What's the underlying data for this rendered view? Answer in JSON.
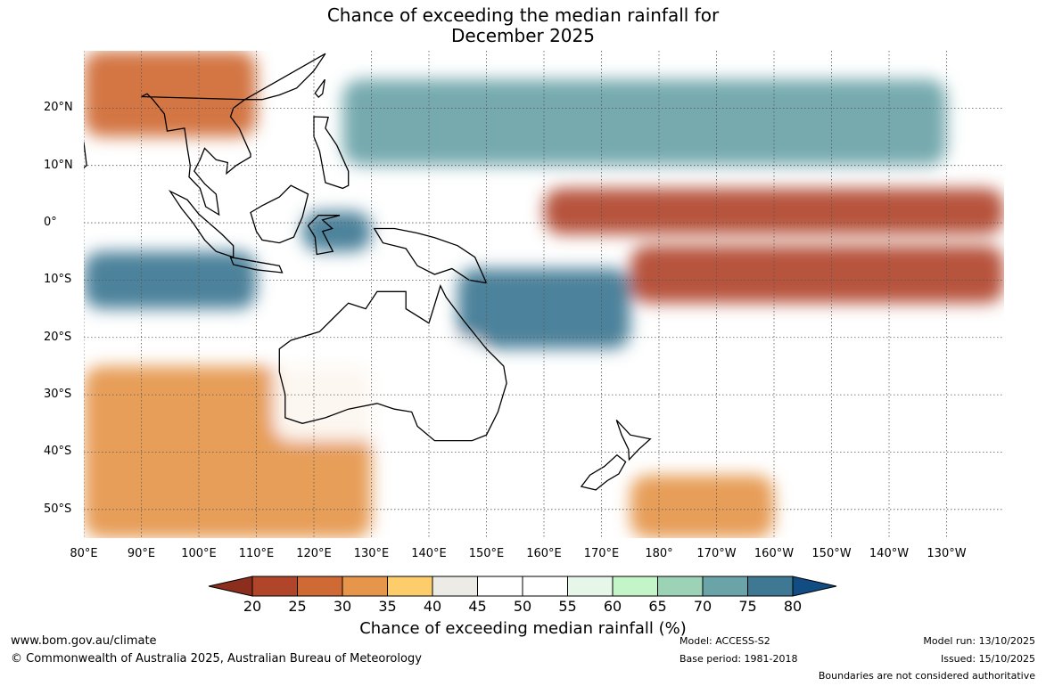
{
  "title": {
    "line1": "Chance of exceeding the median rainfall for",
    "line2": "December 2025"
  },
  "axes": {
    "y_labels": [
      "20°N",
      "10°N",
      "0°",
      "10°S",
      "20°S",
      "30°S",
      "40°S",
      "50°S"
    ],
    "x_labels": [
      "80°E",
      "90°E",
      "100°E",
      "110°E",
      "120°E",
      "130°E",
      "140°E",
      "150°E",
      "160°E",
      "170°E",
      "180°",
      "170°W",
      "160°W",
      "150°W",
      "140°W",
      "130°W"
    ]
  },
  "colorbar": {
    "label": "Chance of exceeding median rainfall (%)",
    "ticks": [
      "20",
      "25",
      "30",
      "35",
      "40",
      "45",
      "50",
      "55",
      "60",
      "65",
      "70",
      "75",
      "80"
    ],
    "colors": [
      "#8b2e1e",
      "#b1452a",
      "#cf6a35",
      "#e5964a",
      "#fdcd6b",
      "#ecebe6",
      "#ffffff",
      "#ffffff",
      "#e6f6e8",
      "#c4f5c8",
      "#9cd2b5",
      "#6aa3a8",
      "#3e7893",
      "#114c82"
    ]
  },
  "footer": {
    "website": "www.bom.gov.au/climate",
    "copyright": "© Commonwealth of Australia 2025, Australian Bureau of Meteorology",
    "model": "Model: ACCESS-S2",
    "base_period": "Base period: 1981-2018",
    "model_run": "Model run: 13/10/2025",
    "issued": "Issued: 15/10/2025",
    "disclaimer": "Boundaries are not considered authoritative"
  },
  "chart_data": {
    "type": "heatmap",
    "title": "Chance of exceeding the median rainfall for December 2025",
    "variable": "Probability of exceeding median rainfall (%)",
    "lon_range": [
      80,
      240
    ],
    "lat_range": [
      -55,
      30
    ],
    "color_range": [
      20,
      80
    ],
    "regions": [
      {
        "name": "Equatorial central-eastern Pacific",
        "lon": [
          160,
          240
        ],
        "lat": [
          -2,
          6
        ],
        "probability": 20
      },
      {
        "name": "South-east Pacific dry band",
        "lon": [
          175,
          240
        ],
        "lat": [
          -14,
          -4
        ],
        "probability": 22
      },
      {
        "name": "Western Pacific warm pool / Coral Sea",
        "lon": [
          145,
          175
        ],
        "lat": [
          -22,
          -8
        ],
        "probability": 75
      },
      {
        "name": "Maritime Continent (Sulawesi)",
        "lon": [
          118,
          130
        ],
        "lat": [
          -5,
          2
        ],
        "probability": 78
      },
      {
        "name": "Eastern Indian Ocean",
        "lon": [
          80,
          110
        ],
        "lat": [
          -15,
          -5
        ],
        "probability": 78
      },
      {
        "name": "North-west Pacific",
        "lon": [
          125,
          230
        ],
        "lat": [
          10,
          25
        ],
        "probability": 72
      },
      {
        "name": "Mainland South-East Asia",
        "lon": [
          80,
          110
        ],
        "lat": [
          15,
          30
        ],
        "probability": 28
      },
      {
        "name": "Southern Indian Ocean",
        "lon": [
          80,
          130
        ],
        "lat": [
          -55,
          -25
        ],
        "probability": 30
      },
      {
        "name": "South of New Zealand",
        "lon": [
          175,
          200
        ],
        "lat": [
          -55,
          -44
        ],
        "probability": 32
      },
      {
        "name": "Australia interior",
        "lon": [
          113,
          150
        ],
        "lat": [
          -38,
          -20
        ],
        "probability": 50
      }
    ]
  }
}
